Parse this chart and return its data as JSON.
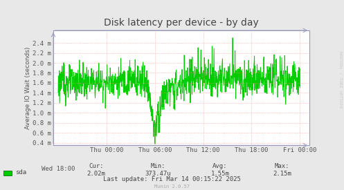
{
  "title": "Disk latency per device - by day",
  "ylabel": "Average IO Wait (seconds)",
  "right_label": "RRDTOOL / TOBI OETIKER",
  "bg_color": "#e8e8e8",
  "plot_bg_color": "#ffffff",
  "grid_color": "#ff8888",
  "line_color": "#00cc00",
  "border_color": "#9999bb",
  "arrow_color": "#9999bb",
  "ytick_labels": [
    "0.4 m",
    "0.6 m",
    "0.8 m",
    "1.0 m",
    "1.2 m",
    "1.4 m",
    "1.6 m",
    "1.8 m",
    "2.0 m",
    "2.2 m",
    "2.4 m"
  ],
  "ytick_values": [
    0.0004,
    0.0006,
    0.0008,
    0.001,
    0.0012,
    0.0014,
    0.0016,
    0.0018,
    0.002,
    0.0022,
    0.0024
  ],
  "xtick_labels": [
    "Wed 18:00",
    "Thu 00:00",
    "Thu 06:00",
    "Thu 12:00",
    "Thu 18:00",
    "Fri 00:00"
  ],
  "ymin": 0.00035,
  "ymax": 0.00265,
  "legend_label": "sda",
  "legend_color": "#00cc00",
  "cur_label": "Cur:",
  "cur_val": "2.02m",
  "min_label": "Min:",
  "min_val": "373.47u",
  "avg_label": "Avg:",
  "avg_val": "1.55m",
  "max_label": "Max:",
  "max_val": "2.15m",
  "last_update": "Last update: Fri Mar 14 00:15:22 2025",
  "munin_version": "Munin 2.0.57",
  "title_fontsize": 10,
  "axis_fontsize": 6.5,
  "stats_fontsize": 6.5
}
